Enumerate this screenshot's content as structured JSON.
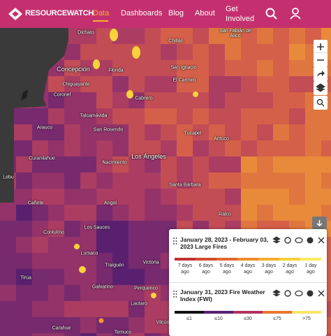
{
  "header": {
    "logo": "RESOURCEWATCH",
    "nav": [
      "Data",
      "Dashboards",
      "Blog",
      "About",
      "Get Involved"
    ]
  },
  "map": {
    "places": [
      "Dichato",
      "Chillán",
      "San Fabián de Alico",
      "Concepción",
      "Florida",
      "San Ignacio",
      "Chiguayante",
      "El Carmen",
      "Coronel",
      "Cabrero",
      "Talcamávida",
      "San Rosendo",
      "Tucapel",
      "Arauco",
      "Antuco",
      "Curanilahue",
      "Nacimiento",
      "Los Ángeles",
      "Lebu",
      "Santa Bárbara",
      "Cañete",
      "Angol",
      "Ralco",
      "Contulmo",
      "Los Sauces",
      "Lumaco",
      "Traiguén",
      "Victoria",
      "Tirúa",
      "Galvarino",
      "Perquenco",
      "Lautaro",
      "Carahue",
      "Temuco",
      "Vilcún"
    ]
  },
  "legend": {
    "layers": [
      {
        "title": "January 28, 2023 - February 03, 2023 Large Fires",
        "labels": [
          "7 days ago",
          "6 days ago",
          "5 days ago",
          "4 days ago",
          "3 days ago",
          "2 days ago",
          "1 day ago"
        ]
      },
      {
        "title": "January 31, 2023 Fire Weather Index (FWI)",
        "labels": [
          "≤1",
          "≤10",
          "≤30",
          "≤75",
          ">75"
        ]
      }
    ]
  }
}
